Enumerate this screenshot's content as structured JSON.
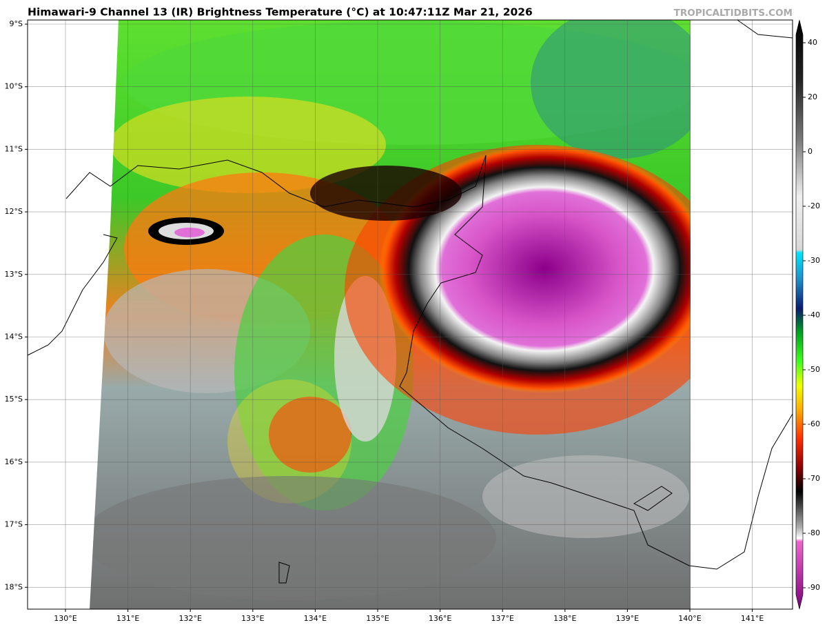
{
  "header": {
    "title": "Himawari-9 Channel 13 (IR) Brightness Temperature (°C) at 10:47:11Z Mar 21, 2026",
    "credit": "TROPICALTIDBITS.COM"
  },
  "map": {
    "lat_labels": [
      "9°S",
      "10°S",
      "11°S",
      "12°S",
      "13°S",
      "14°S",
      "15°S",
      "16°S",
      "17°S",
      "18°S"
    ],
    "lon_labels": [
      "130°E",
      "131°E",
      "132°E",
      "133°E",
      "134°E",
      "135°E",
      "136°E",
      "137°E",
      "138°E",
      "139°E",
      "140°E",
      "141°E"
    ]
  },
  "colorbar": {
    "ticks": [
      40,
      20,
      0,
      -20,
      -30,
      -40,
      -50,
      -60,
      -70,
      -80,
      -90
    ]
  }
}
